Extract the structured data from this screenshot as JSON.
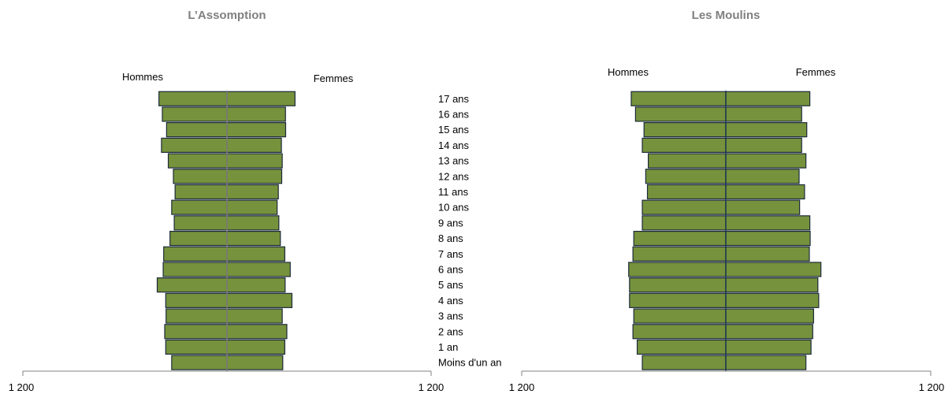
{
  "categories": [
    "Moins d'un an",
    "1 an",
    "2 ans",
    "3 ans",
    "4 ans",
    "5 ans",
    "6 ans",
    "7 ans",
    "8 ans",
    "9 ans",
    "10 ans",
    "11 ans",
    "12 ans",
    "13 ans",
    "14 ans",
    "15 ans",
    "16 ans",
    "17 ans"
  ],
  "colors": {
    "bar": "#76923c",
    "bar_border": "#1b2a3a",
    "center_left": "#7f7f7f",
    "center_right": "#1f3b53",
    "axis": "#808080",
    "title": "#808080"
  },
  "chart_data": [
    {
      "type": "bar",
      "orientation": "horizontal",
      "style": "population-pyramid",
      "title": "L’Assomption",
      "categories": [
        "Moins d'un an",
        "1 an",
        "2 ans",
        "3 ans",
        "4 ans",
        "5 ans",
        "6 ans",
        "7 ans",
        "8 ans",
        "9 ans",
        "10 ans",
        "11 ans",
        "12 ans",
        "13 ans",
        "14 ans",
        "15 ans",
        "16 ans",
        "17 ans"
      ],
      "series": [
        {
          "name": "Hommes",
          "side": "left",
          "values": [
            325,
            360,
            366,
            358,
            360,
            410,
            375,
            372,
            335,
            310,
            325,
            305,
            315,
            345,
            385,
            355,
            380,
            400
          ]
        },
        {
          "name": "Femmes",
          "side": "right",
          "values": [
            328,
            340,
            352,
            325,
            382,
            342,
            372,
            340,
            314,
            305,
            295,
            302,
            322,
            325,
            320,
            345,
            344,
            400
          ]
        }
      ],
      "xlim": [
        -1200,
        1200
      ],
      "tick_labels": [
        "1 200",
        "1 200"
      ],
      "grid": false,
      "legend": "top"
    },
    {
      "type": "bar",
      "orientation": "horizontal",
      "style": "population-pyramid",
      "title": "Les Moulins",
      "categories": [
        "Moins d'un an",
        "1 an",
        "2 ans",
        "3 ans",
        "4 ans",
        "5 ans",
        "6 ans",
        "7 ans",
        "8 ans",
        "9 ans",
        "10 ans",
        "11 ans",
        "12 ans",
        "13 ans",
        "14 ans",
        "15 ans",
        "16 ans",
        "17 ans"
      ],
      "series": [
        {
          "name": "Hommes",
          "side": "left",
          "values": [
            490,
            520,
            545,
            540,
            565,
            565,
            570,
            545,
            540,
            490,
            490,
            460,
            470,
            455,
            490,
            480,
            530,
            555
          ]
        },
        {
          "name": "Femmes",
          "side": "right",
          "values": [
            470,
            500,
            510,
            515,
            545,
            540,
            558,
            490,
            495,
            493,
            433,
            462,
            430,
            470,
            445,
            475,
            445,
            493
          ]
        }
      ],
      "xlim": [
        -1200,
        1200
      ],
      "tick_labels": [
        "1 200",
        "1 200"
      ],
      "grid": false,
      "legend": "top"
    }
  ]
}
